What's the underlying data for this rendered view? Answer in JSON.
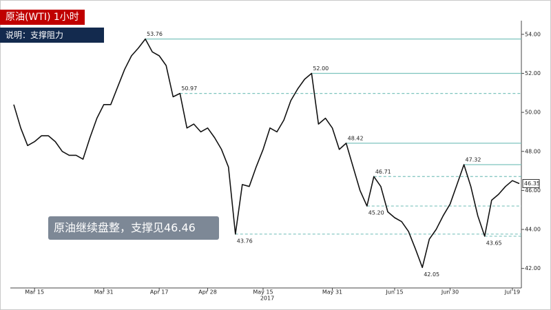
{
  "chart_data": {
    "type": "line",
    "title": "原油(WTI)  1小时",
    "subtitle": "说明：支撑阻力",
    "note": "原油继续盘整，支撑见46.46",
    "year_label": "2017",
    "categories": [
      null,
      null,
      null,
      "Mar 15",
      null,
      null,
      null,
      null,
      null,
      null,
      null,
      null,
      null,
      "Mar 31",
      null,
      null,
      null,
      null,
      null,
      null,
      null,
      "Apr 17",
      null,
      null,
      null,
      null,
      null,
      null,
      "Apr 28",
      null,
      null,
      null,
      null,
      null,
      null,
      null,
      "May 15",
      null,
      null,
      null,
      null,
      null,
      null,
      null,
      null,
      null,
      "May 31",
      null,
      null,
      null,
      null,
      null,
      null,
      null,
      null,
      "Jun 15",
      null,
      null,
      null,
      null,
      null,
      null,
      null,
      "Jun 30",
      null,
      null,
      null,
      null,
      null,
      null,
      null,
      null,
      "Jul 19",
      null
    ],
    "series": [
      {
        "color": "#111111",
        "values": [
          50.4,
          49.2,
          48.3,
          48.5,
          48.8,
          48.8,
          48.5,
          48.0,
          47.8,
          47.8,
          47.6,
          48.7,
          49.7,
          50.4,
          50.4,
          51.3,
          52.2,
          52.9,
          53.3,
          53.76,
          53.1,
          52.9,
          52.4,
          50.8,
          50.97,
          49.2,
          49.4,
          49.0,
          49.2,
          48.7,
          48.1,
          47.2,
          43.76,
          46.3,
          46.2,
          47.2,
          48.1,
          49.2,
          49.0,
          49.6,
          50.6,
          51.2,
          51.7,
          52.0,
          49.4,
          49.7,
          49.2,
          48.1,
          48.42,
          47.2,
          46.0,
          45.2,
          46.71,
          46.2,
          44.9,
          44.6,
          44.4,
          43.9,
          43.0,
          42.05,
          43.5,
          44.0,
          44.7,
          45.3,
          46.3,
          47.32,
          46.2,
          44.7,
          43.65,
          45.5,
          45.8,
          46.2,
          46.5,
          46.35
        ]
      }
    ],
    "levels": [
      {
        "value": 53.76,
        "label": "53.76",
        "line": "solid"
      },
      {
        "value": 52,
        "label": "52.00",
        "line": "solid"
      },
      {
        "value": 50.97,
        "label": "50.97",
        "line": "dashed"
      },
      {
        "value": 48.42,
        "label": "48.42",
        "line": "solid"
      },
      {
        "value": 47.32,
        "label": "47.32",
        "line": "solid"
      },
      {
        "value": 46.71,
        "label": "46.71",
        "line": "dashed"
      },
      {
        "value": 45.2,
        "label": "45.20",
        "line": "dashed"
      },
      {
        "value": 43.76,
        "label": "43.76",
        "line": "dashed"
      },
      {
        "value": 43.65,
        "label": "43.65",
        "line": "dashed"
      },
      {
        "value": 42.05,
        "label": "42.05",
        "line": "none"
      }
    ],
    "level_color": "#7cc3bd",
    "ylim": [
      41,
      54.7
    ],
    "yticks": [
      {
        "value": 42,
        "label": "42.00"
      },
      {
        "value": 44,
        "label": "44.00"
      },
      {
        "value": 46,
        "label": "46.00"
      },
      {
        "value": 48,
        "label": "48.00"
      },
      {
        "value": 50,
        "label": "50.00"
      },
      {
        "value": 52,
        "label": "52.00"
      },
      {
        "value": 54,
        "label": "54.00"
      }
    ]
  }
}
